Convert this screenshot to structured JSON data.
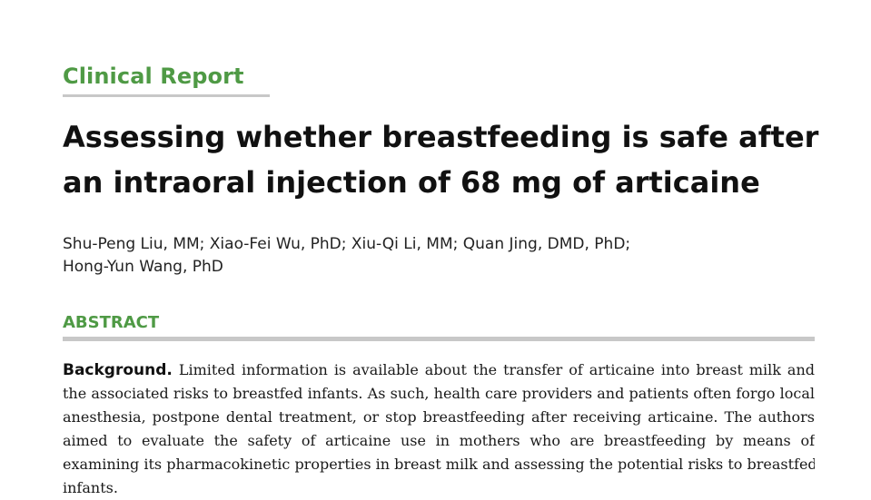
{
  "article": {
    "section_label": "Clinical Report",
    "title_lines": [
      "Assessing whether breastfeeding is safe after",
      "an intraoral injection of 68 mg of articaine"
    ],
    "author_lines": [
      "Shu-Peng Liu, MM; Xiao-Fei Wu, PhD; Xiu-Qi Li, MM; Quan Jing, DMD, PhD;",
      "Hong-Yun Wang, PhD"
    ],
    "abstract_heading": "ABSTRACT",
    "background_label": "Background.",
    "background_lines": [
      "Limited information is available about the transfer of articaine into breast milk and",
      "the associated risks to breastfed infants. As such, health care providers and patients often forgo local",
      "anesthesia, postpone dental treatment, or stop breastfeeding after receiving articaine. The authors",
      "aimed to evaluate the safety of articaine use in mothers who are breastfeeding by means of",
      "examining its pharmacokinetic properties in breast milk and assessing the potential risks to breastfed",
      "infants."
    ]
  },
  "colors": {
    "accent_green": "#4f9a45",
    "rule_gray": "#c8c8c8",
    "text": "#111111"
  }
}
